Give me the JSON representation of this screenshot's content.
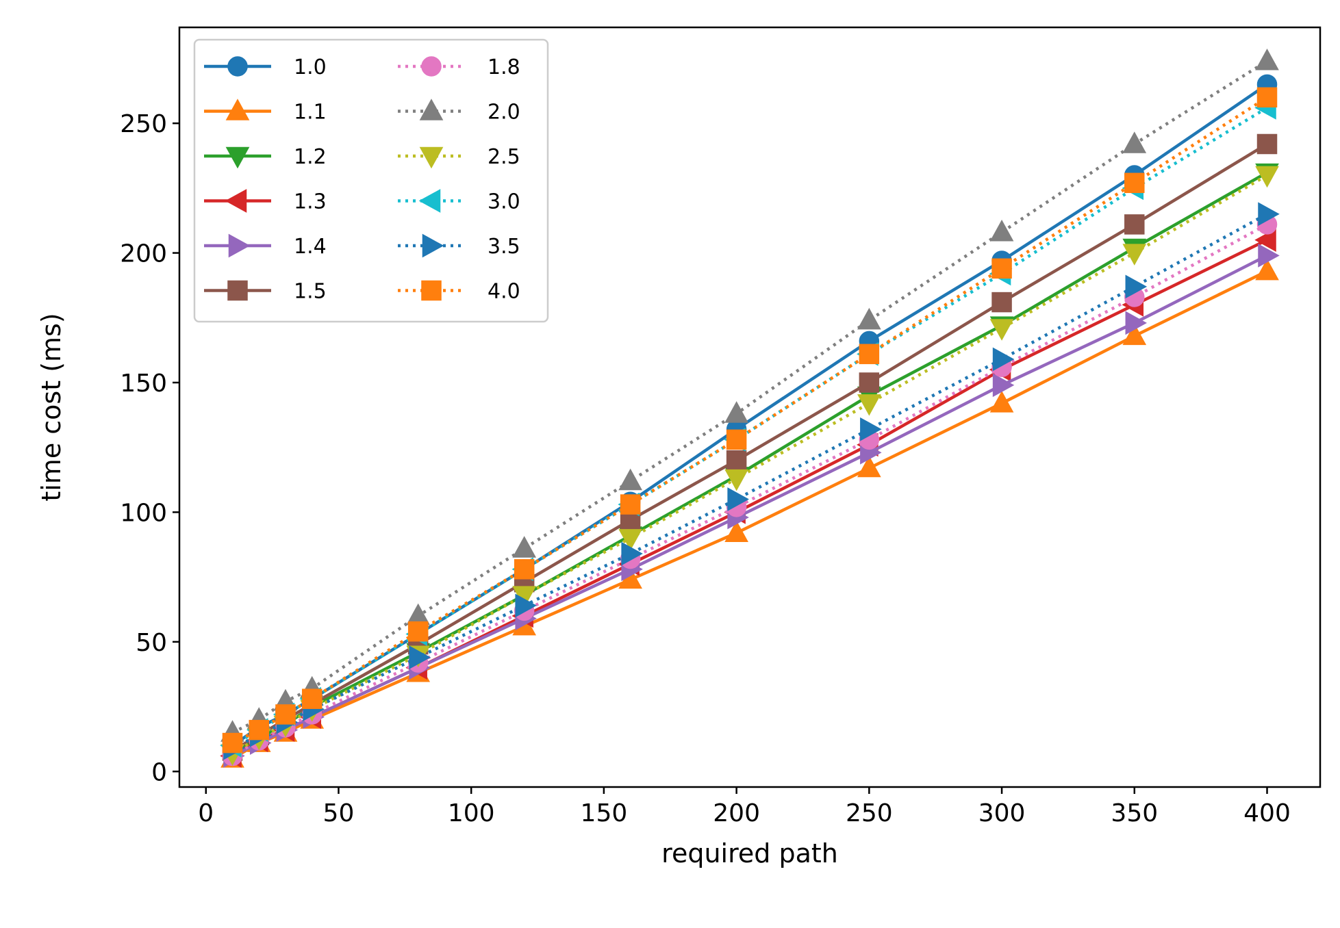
{
  "chart_data": {
    "type": "line",
    "xlabel": "required path",
    "ylabel": "time cost (ms)",
    "xlim": [
      -10,
      420
    ],
    "ylim": [
      -6,
      287
    ],
    "x_ticks": [
      0,
      50,
      100,
      150,
      200,
      250,
      300,
      350,
      400
    ],
    "y_ticks": [
      0,
      50,
      100,
      150,
      200,
      250
    ],
    "grid": false,
    "legend_placement": "top-left",
    "legend_columns": 2,
    "x": [
      10,
      20,
      30,
      40,
      80,
      120,
      160,
      200,
      250,
      300,
      350,
      400
    ],
    "series": [
      {
        "name": "1.0",
        "color": "#1f77b4",
        "marker": "circle",
        "linestyle": "solid",
        "values": [
          10,
          17,
          22,
          28,
          53,
          78,
          104,
          132,
          166,
          197,
          230,
          265
        ]
      },
      {
        "name": "1.1",
        "color": "#ff7f0e",
        "marker": "triangle-up",
        "linestyle": "solid",
        "values": [
          5,
          11,
          15,
          20,
          38,
          56,
          74,
          92,
          117,
          142,
          168,
          193
        ]
      },
      {
        "name": "1.2",
        "color": "#2ca02c",
        "marker": "triangle-down",
        "linestyle": "solid",
        "values": [
          7,
          13,
          18,
          25,
          46,
          68,
          91,
          114,
          145,
          172,
          202,
          231
        ]
      },
      {
        "name": "1.3",
        "color": "#d62728",
        "marker": "triangle-left",
        "linestyle": "solid",
        "values": [
          6,
          12,
          16,
          21,
          40,
          60,
          80,
          100,
          126,
          155,
          180,
          205
        ]
      },
      {
        "name": "1.4",
        "color": "#9467bd",
        "marker": "triangle-right",
        "linestyle": "solid",
        "values": [
          6,
          11,
          16,
          21,
          40,
          59,
          78,
          98,
          123,
          149,
          173,
          199
        ]
      },
      {
        "name": "1.5",
        "color": "#8c564b",
        "marker": "square",
        "linestyle": "solid",
        "values": [
          8,
          14,
          20,
          26,
          49,
          73,
          97,
          120,
          150,
          181,
          211,
          242
        ]
      },
      {
        "name": "1.8",
        "color": "#e377c2",
        "marker": "circle",
        "linestyle": "dotted",
        "values": [
          6,
          12,
          17,
          22,
          42,
          62,
          82,
          102,
          128,
          156,
          183,
          211
        ]
      },
      {
        "name": "2.0",
        "color": "#7f7f7f",
        "marker": "triangle-up",
        "linestyle": "dotted",
        "values": [
          15,
          20,
          27,
          32,
          60,
          86,
          112,
          138,
          174,
          208,
          242,
          274
        ]
      },
      {
        "name": "2.5",
        "color": "#bcbd22",
        "marker": "triangle-down",
        "linestyle": "dotted",
        "values": [
          7,
          13,
          18,
          24,
          45,
          68,
          90,
          113,
          142,
          171,
          200,
          230
        ]
      },
      {
        "name": "3.0",
        "color": "#17becf",
        "marker": "triangle-left",
        "linestyle": "dotted",
        "values": [
          10,
          16,
          22,
          28,
          53,
          78,
          103,
          128,
          161,
          192,
          225,
          256
        ]
      },
      {
        "name": "3.5",
        "color": "#1f77b4",
        "marker": "triangle-right",
        "linestyle": "dotted",
        "values": [
          9,
          14,
          19,
          24,
          44,
          64,
          84,
          105,
          132,
          159,
          187,
          215
        ]
      },
      {
        "name": "4.0",
        "color": "#ff7f0e",
        "marker": "square",
        "linestyle": "dotted",
        "values": [
          11,
          16,
          22,
          28,
          54,
          78,
          103,
          128,
          161,
          194,
          227,
          260
        ]
      }
    ]
  }
}
